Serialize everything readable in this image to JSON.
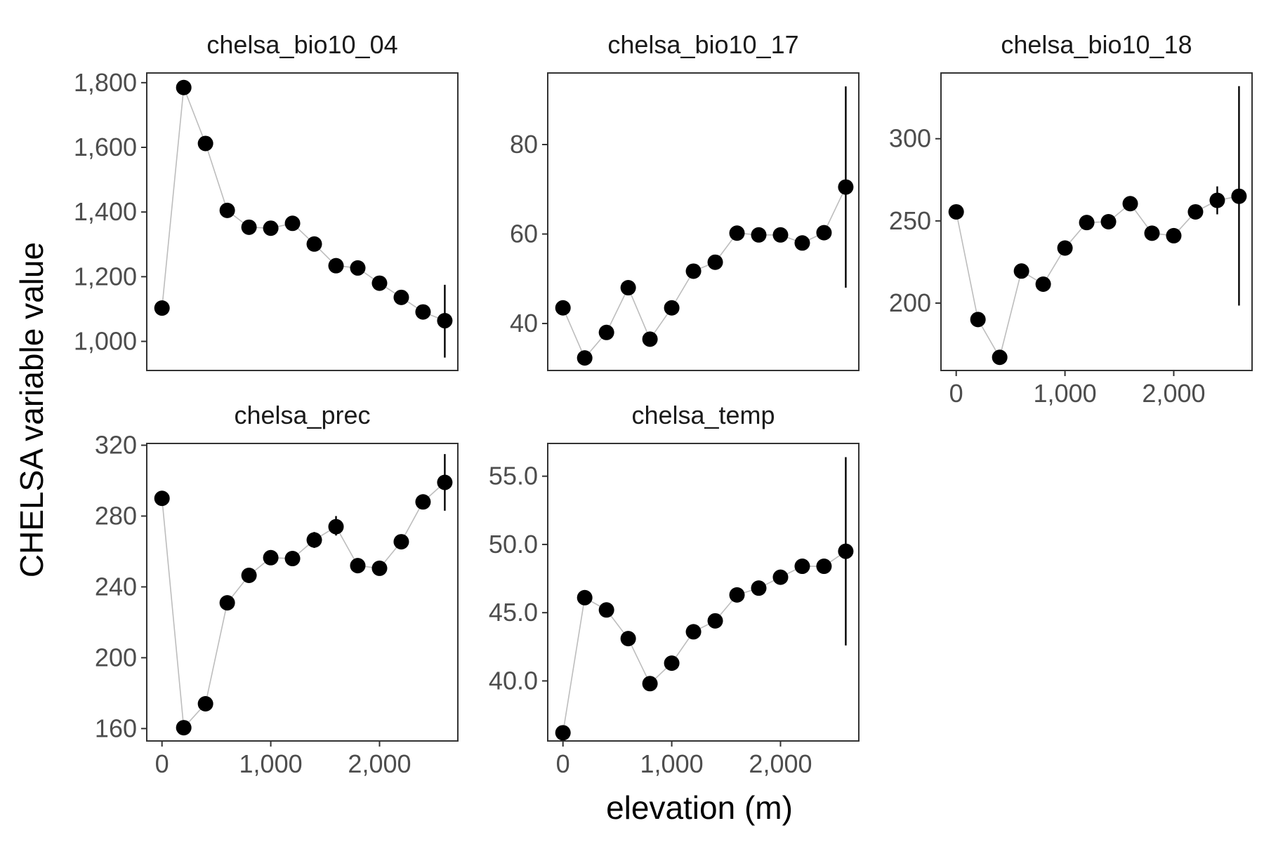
{
  "chart_data": {
    "type": "scatter",
    "xlabel": "elevation (m)",
    "ylabel": "CHELSA variable value",
    "x_ticks": [
      {
        "value": 0,
        "label": "0"
      },
      {
        "value": 1000,
        "label": "1,000"
      },
      {
        "value": 2000,
        "label": "2,000"
      }
    ],
    "x_range": [
      -140,
      2720
    ],
    "grid": false,
    "panels": [
      {
        "title": "chelsa_bio10_04",
        "ylim": [
          910,
          1830
        ],
        "y_ticks": [
          {
            "value": 1000,
            "label": "1,000"
          },
          {
            "value": 1200,
            "label": "1,200"
          },
          {
            "value": 1400,
            "label": "1,400"
          },
          {
            "value": 1600,
            "label": "1,600"
          },
          {
            "value": 1800,
            "label": "1,800"
          }
        ],
        "show_x_ticks": false,
        "x": [
          0,
          200,
          400,
          600,
          800,
          1000,
          1200,
          1400,
          1600,
          1800,
          2000,
          2200,
          2400,
          2600
        ],
        "y": [
          1103,
          1785,
          1612,
          1405,
          1353,
          1350,
          1365,
          1301,
          1234,
          1227,
          1180,
          1136,
          1091,
          1064
        ],
        "error": [
          [
            2600,
            950,
            1175
          ]
        ]
      },
      {
        "title": "chelsa_bio10_17",
        "ylim": [
          29.5,
          96
        ],
        "y_ticks": [
          {
            "value": 40,
            "label": "40"
          },
          {
            "value": 60,
            "label": "60"
          },
          {
            "value": 80,
            "label": "80"
          }
        ],
        "show_x_ticks": false,
        "x": [
          0,
          200,
          400,
          600,
          800,
          1000,
          1200,
          1400,
          1600,
          1800,
          2000,
          2200,
          2400,
          2600
        ],
        "y": [
          43.5,
          32.3,
          38.0,
          48.0,
          36.5,
          43.5,
          51.7,
          53.7,
          60.2,
          59.8,
          59.8,
          58.0,
          60.3,
          70.5
        ],
        "error": [
          [
            2600,
            48.0,
            93.0
          ]
        ]
      },
      {
        "title": "chelsa_bio10_18",
        "ylim": [
          159,
          340
        ],
        "y_ticks": [
          {
            "value": 200,
            "label": "200"
          },
          {
            "value": 250,
            "label": "250"
          },
          {
            "value": 300,
            "label": "300"
          }
        ],
        "show_x_ticks": true,
        "x": [
          0,
          200,
          400,
          600,
          800,
          1000,
          1200,
          1400,
          1600,
          1800,
          2000,
          2200,
          2400,
          2600
        ],
        "y": [
          255.5,
          190.0,
          167.0,
          219.5,
          211.5,
          233.5,
          249.0,
          249.5,
          260.5,
          242.5,
          241.0,
          255.5,
          262.5,
          265.0
        ],
        "error": [
          [
            2400,
            254.0,
            271.0
          ],
          [
            2600,
            198.5,
            332.0
          ]
        ]
      },
      {
        "title": "chelsa_prec",
        "ylim": [
          153,
          321
        ],
        "y_ticks": [
          {
            "value": 160,
            "label": "160"
          },
          {
            "value": 200,
            "label": "200"
          },
          {
            "value": 240,
            "label": "240"
          },
          {
            "value": 280,
            "label": "280"
          },
          {
            "value": 320,
            "label": "320"
          }
        ],
        "show_x_ticks": true,
        "x": [
          0,
          200,
          400,
          600,
          800,
          1000,
          1200,
          1400,
          1600,
          1800,
          2000,
          2200,
          2400,
          2600
        ],
        "y": [
          290.0,
          160.5,
          174.0,
          231.0,
          246.5,
          256.5,
          256.0,
          266.5,
          274.0,
          252.0,
          250.5,
          265.5,
          288.0,
          299.0
        ],
        "error": [
          [
            1400,
            262.0,
            271.0
          ],
          [
            1600,
            269.0,
            280.0
          ],
          [
            2400,
            284.0,
            292.0
          ],
          [
            2600,
            283.0,
            315.0
          ]
        ]
      },
      {
        "title": "chelsa_temp",
        "ylim": [
          35.6,
          57.4
        ],
        "y_ticks": [
          {
            "value": 40,
            "label": "40.0"
          },
          {
            "value": 45,
            "label": "45.0"
          },
          {
            "value": 50,
            "label": "50.0"
          },
          {
            "value": 55,
            "label": "55.0"
          }
        ],
        "show_x_ticks": true,
        "x": [
          0,
          200,
          400,
          600,
          800,
          1000,
          1200,
          1400,
          1600,
          1800,
          2000,
          2200,
          2400,
          2600
        ],
        "y": [
          36.2,
          46.1,
          45.2,
          43.1,
          39.8,
          41.3,
          43.6,
          44.4,
          46.3,
          46.8,
          47.6,
          48.4,
          48.4,
          49.5
        ],
        "error": [
          [
            2600,
            42.6,
            56.4
          ]
        ]
      }
    ]
  }
}
